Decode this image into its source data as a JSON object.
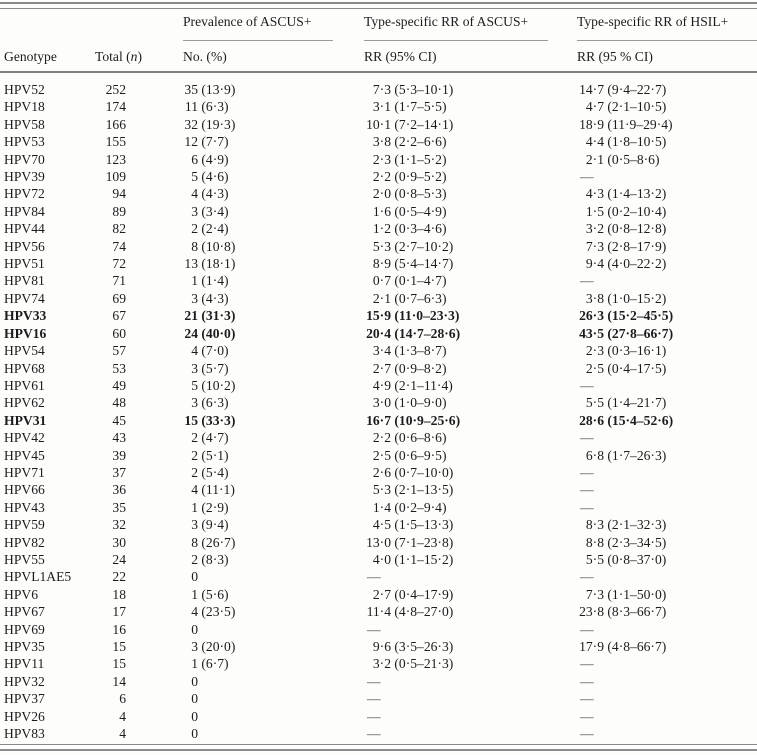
{
  "table": {
    "missing_marker": "—",
    "headers": {
      "genotype": "Genotype",
      "total_pre": "Total (",
      "total_n": "n",
      "total_post": ")",
      "group_prevalence": "Prevalence of ASCUS+",
      "group_rr_ascus": "Type-specific RR of ASCUS+",
      "group_rr_hsil": "Type-specific RR of HSIL+",
      "sub_prevalence": "No. (%)",
      "sub_rr_ascus": "RR (95% CI)",
      "sub_rr_hsil": "RR (95 % CI)"
    },
    "rows": [
      {
        "g": "HPV52",
        "t": "252",
        "pn": "35",
        "pp": "(13·9)",
        "r1": "7·3",
        "c1": "(5·3–10·1)",
        "r2": "14·7",
        "c2": "(9·4–22·7)",
        "b": false
      },
      {
        "g": "HPV18",
        "t": "174",
        "pn": "11",
        "pp": "(6·3)",
        "r1": "3·1",
        "c1": "(1·7–5·5)",
        "r2": "4·7",
        "c2": "(2·1–10·5)",
        "b": false
      },
      {
        "g": "HPV58",
        "t": "166",
        "pn": "32",
        "pp": "(19·3)",
        "r1": "10·1",
        "c1": "(7·2–14·1)",
        "r2": "18·9",
        "c2": "(11·9–29·4)",
        "b": false
      },
      {
        "g": "HPV53",
        "t": "155",
        "pn": "12",
        "pp": "(7·7)",
        "r1": "3·8",
        "c1": "(2·2–6·6)",
        "r2": "4·4",
        "c2": "(1·8–10·5)",
        "b": false
      },
      {
        "g": "HPV70",
        "t": "123",
        "pn": "6",
        "pp": "(4·9)",
        "r1": "2·3",
        "c1": "(1·1–5·2)",
        "r2": "2·1",
        "c2": "(0·5–8·6)",
        "b": false
      },
      {
        "g": "HPV39",
        "t": "109",
        "pn": "5",
        "pp": "(4·6)",
        "r1": "2·2",
        "c1": "(0·9–5·2)",
        "r2": null,
        "c2": null,
        "b": false
      },
      {
        "g": "HPV72",
        "t": "94",
        "pn": "4",
        "pp": "(4·3)",
        "r1": "2·0",
        "c1": "(0·8–5·3)",
        "r2": "4·3",
        "c2": "(1·4–13·2)",
        "b": false
      },
      {
        "g": "HPV84",
        "t": "89",
        "pn": "3",
        "pp": "(3·4)",
        "r1": "1·6",
        "c1": "(0·5–4·9)",
        "r2": "1·5",
        "c2": "(0·2–10·4)",
        "b": false
      },
      {
        "g": "HPV44",
        "t": "82",
        "pn": "2",
        "pp": "(2·4)",
        "r1": "1·2",
        "c1": "(0·3–4·6)",
        "r2": "3·2",
        "c2": "(0·8–12·8)",
        "b": false
      },
      {
        "g": "HPV56",
        "t": "74",
        "pn": "8",
        "pp": "(10·8)",
        "r1": "5·3",
        "c1": "(2·7–10·2)",
        "r2": "7·3",
        "c2": "(2·8–17·9)",
        "b": false
      },
      {
        "g": "HPV51",
        "t": "72",
        "pn": "13",
        "pp": "(18·1)",
        "r1": "8·9",
        "c1": "(5·4–14·7)",
        "r2": "9·4",
        "c2": "(4·0–22·2)",
        "b": false
      },
      {
        "g": "HPV81",
        "t": "71",
        "pn": "1",
        "pp": "(1·4)",
        "r1": "0·7",
        "c1": "(0·1–4·7)",
        "r2": null,
        "c2": null,
        "b": false
      },
      {
        "g": "HPV74",
        "t": "69",
        "pn": "3",
        "pp": "(4·3)",
        "r1": "2·1",
        "c1": "(0·7–6·3)",
        "r2": "3·8",
        "c2": "(1·0–15·2)",
        "b": false
      },
      {
        "g": "HPV33",
        "t": "67",
        "pn": "21",
        "pp": "(31·3)",
        "r1": "15·9",
        "c1": "(11·0–23·3)",
        "r2": "26·3",
        "c2": "(15·2–45·5)",
        "b": true
      },
      {
        "g": "HPV16",
        "t": "60",
        "pn": "24",
        "pp": "(40·0)",
        "r1": "20·4",
        "c1": "(14·7–28·6)",
        "r2": "43·5",
        "c2": "(27·8–66·7)",
        "b": true
      },
      {
        "g": "HPV54",
        "t": "57",
        "pn": "4",
        "pp": "(7·0)",
        "r1": "3·4",
        "c1": "(1·3–8·7)",
        "r2": "2·3",
        "c2": "(0·3–16·1)",
        "b": false
      },
      {
        "g": "HPV68",
        "t": "53",
        "pn": "3",
        "pp": "(5·7)",
        "r1": "2·7",
        "c1": "(0·9–8·2)",
        "r2": "2·5",
        "c2": "(0·4–17·5)",
        "b": false
      },
      {
        "g": "HPV61",
        "t": "49",
        "pn": "5",
        "pp": "(10·2)",
        "r1": "4·9",
        "c1": "(2·1–11·4)",
        "r2": null,
        "c2": null,
        "b": false
      },
      {
        "g": "HPV62",
        "t": "48",
        "pn": "3",
        "pp": "(6·3)",
        "r1": "3·0",
        "c1": "(1·0–9·0)",
        "r2": "5·5",
        "c2": "(1·4–21·7)",
        "b": false
      },
      {
        "g": "HPV31",
        "t": "45",
        "pn": "15",
        "pp": "(33·3)",
        "r1": "16·7",
        "c1": "(10·9–25·6)",
        "r2": "28·6",
        "c2": "(15·4–52·6)",
        "b": true
      },
      {
        "g": "HPV42",
        "t": "43",
        "pn": "2",
        "pp": "(4·7)",
        "r1": "2·2",
        "c1": "(0·6–8·6)",
        "r2": null,
        "c2": null,
        "b": false
      },
      {
        "g": "HPV45",
        "t": "39",
        "pn": "2",
        "pp": "(5·1)",
        "r1": "2·5",
        "c1": "(0·6–9·5)",
        "r2": "6·8",
        "c2": "(1·7–26·3)",
        "b": false
      },
      {
        "g": "HPV71",
        "t": "37",
        "pn": "2",
        "pp": "(5·4)",
        "r1": "2·6",
        "c1": "(0·7–10·0)",
        "r2": null,
        "c2": null,
        "b": false
      },
      {
        "g": "HPV66",
        "t": "36",
        "pn": "4",
        "pp": "(11·1)",
        "r1": "5·3",
        "c1": "(2·1–13·5)",
        "r2": null,
        "c2": null,
        "b": false
      },
      {
        "g": "HPV43",
        "t": "35",
        "pn": "1",
        "pp": "(2·9)",
        "r1": "1·4",
        "c1": "(0·2–9·4)",
        "r2": null,
        "c2": null,
        "b": false
      },
      {
        "g": "HPV59",
        "t": "32",
        "pn": "3",
        "pp": "(9·4)",
        "r1": "4·5",
        "c1": "(1·5–13·3)",
        "r2": "8·3",
        "c2": "(2·1–32·3)",
        "b": false
      },
      {
        "g": "HPV82",
        "t": "30",
        "pn": "8",
        "pp": "(26·7)",
        "r1": "13·0",
        "c1": "(7·1–23·8)",
        "r2": "8·8",
        "c2": "(2·3–34·5)",
        "b": false
      },
      {
        "g": "HPV55",
        "t": "24",
        "pn": "2",
        "pp": "(8·3)",
        "r1": "4·0",
        "c1": "(1·1–15·2)",
        "r2": "5·5",
        "c2": "(0·8–37·0)",
        "b": false
      },
      {
        "g": "HPVL1AE5",
        "t": "22",
        "pn": "0",
        "pp": null,
        "r1": null,
        "c1": null,
        "r2": null,
        "c2": null,
        "b": false
      },
      {
        "g": "HPV6",
        "t": "18",
        "pn": "1",
        "pp": "(5·6)",
        "r1": "2·7",
        "c1": "(0·4–17·9)",
        "r2": "7·3",
        "c2": "(1·1–50·0)",
        "b": false
      },
      {
        "g": "HPV67",
        "t": "17",
        "pn": "4",
        "pp": "(23·5)",
        "r1": "11·4",
        "c1": "(4·8–27·0)",
        "r2": "23·8",
        "c2": "(8·3–66·7)",
        "b": false
      },
      {
        "g": "HPV69",
        "t": "16",
        "pn": "0",
        "pp": null,
        "r1": null,
        "c1": null,
        "r2": null,
        "c2": null,
        "b": false
      },
      {
        "g": "HPV35",
        "t": "15",
        "pn": "3",
        "pp": "(20·0)",
        "r1": "9·6",
        "c1": "(3·5–26·3)",
        "r2": "17·9",
        "c2": "(4·8–66·7)",
        "b": false
      },
      {
        "g": "HPV11",
        "t": "15",
        "pn": "1",
        "pp": "(6·7)",
        "r1": "3·2",
        "c1": "(0·5–21·3)",
        "r2": null,
        "c2": null,
        "b": false
      },
      {
        "g": "HPV32",
        "t": "14",
        "pn": "0",
        "pp": null,
        "r1": null,
        "c1": null,
        "r2": null,
        "c2": null,
        "b": false
      },
      {
        "g": "HPV37",
        "t": "6",
        "pn": "0",
        "pp": null,
        "r1": null,
        "c1": null,
        "r2": null,
        "c2": null,
        "b": false
      },
      {
        "g": "HPV26",
        "t": "4",
        "pn": "0",
        "pp": null,
        "r1": null,
        "c1": null,
        "r2": null,
        "c2": null,
        "b": false
      },
      {
        "g": "HPV83",
        "t": "4",
        "pn": "0",
        "pp": null,
        "r1": null,
        "c1": null,
        "r2": null,
        "c2": null,
        "b": false
      }
    ]
  }
}
